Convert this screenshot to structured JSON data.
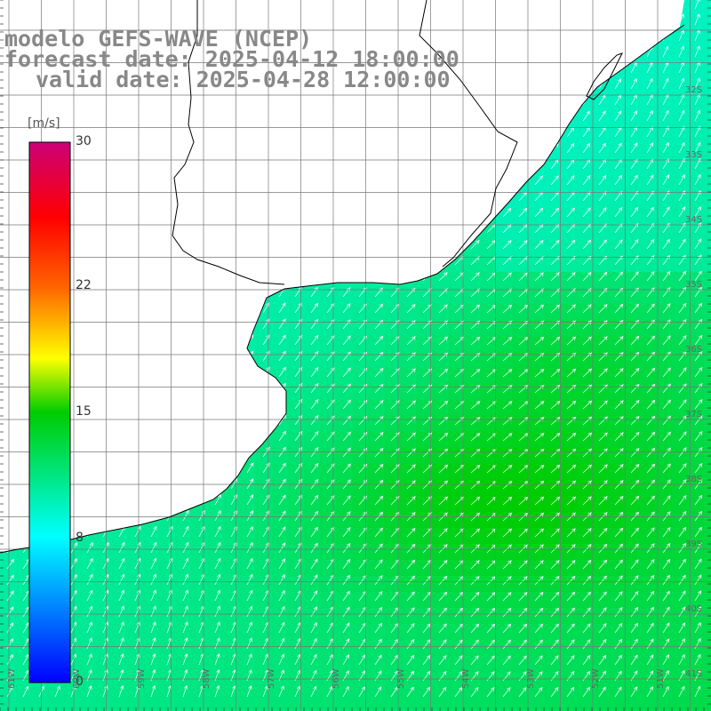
{
  "title": {
    "line1": "modelo GEFS-WAVE (NCEP)",
    "line2": "forecast date: 2025-04-12 18:00:00",
    "line3": "valid date: 2025-04-28 12:00:00"
  },
  "colorbar": {
    "unit": "[m/s]",
    "ticks": [
      "30",
      "22",
      "15",
      "8",
      "0"
    ],
    "tick_values": [
      30,
      22,
      15,
      8,
      0
    ],
    "range": [
      0,
      30
    ]
  },
  "grid": {
    "lat_labels": [
      "32S",
      "33S",
      "34S",
      "35S",
      "36S",
      "37S",
      "38S",
      "39S",
      "40S",
      "41S"
    ],
    "lat_values": [
      -32,
      -33,
      -34,
      -35,
      -36,
      -37,
      -38,
      -39,
      -40,
      -41
    ],
    "lon_labels": [
      "61W",
      "60W",
      "59W",
      "58W",
      "57W",
      "56W",
      "55W",
      "54W",
      "53W",
      "52W",
      "51W"
    ],
    "lon_values": [
      -61,
      -60,
      -59,
      -58,
      -57,
      -56,
      -55,
      -54,
      -53,
      -52,
      -51
    ]
  },
  "colors": {
    "land": "#ffffff",
    "gridline": "#777777",
    "coastline": "#000000",
    "arrows": "#ffffff"
  }
}
